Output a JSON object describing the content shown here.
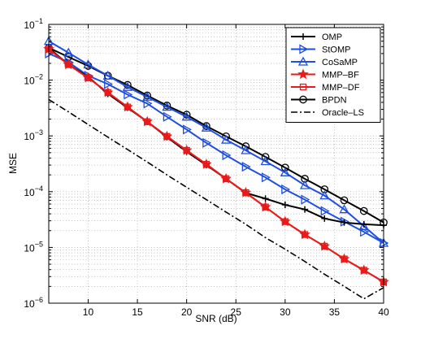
{
  "chart_data": {
    "type": "line",
    "title": "",
    "xlabel": "SNR (dB)",
    "ylabel": "MSE",
    "x_scale": "linear",
    "y_scale": "log",
    "xlim": [
      6,
      40
    ],
    "ylim": [
      1e-06,
      0.1
    ],
    "x_ticks": [
      10,
      15,
      20,
      25,
      30,
      35,
      40
    ],
    "x_tick_labels": [
      "10",
      "15",
      "20",
      "25",
      "30",
      "35",
      "40"
    ],
    "y_ticks": [
      1e-06,
      1e-05,
      0.0001,
      0.001,
      0.01,
      0.1
    ],
    "y_tick_labels": [
      {
        "base": "10",
        "exp": "−6"
      },
      {
        "base": "10",
        "exp": "−5"
      },
      {
        "base": "10",
        "exp": "−4"
      },
      {
        "base": "10",
        "exp": "−3"
      },
      {
        "base": "10",
        "exp": "−2"
      },
      {
        "base": "10",
        "exp": "−1"
      }
    ],
    "grid": true,
    "legend_position": "top-right",
    "x": [
      6,
      8,
      10,
      12,
      14,
      16,
      18,
      20,
      22,
      24,
      26,
      28,
      30,
      32,
      34,
      36,
      38,
      40
    ],
    "series": [
      {
        "name": "OMP",
        "color": "#000000",
        "marker": "plus",
        "dash": "solid",
        "values": [
          0.038,
          0.019,
          0.0115,
          0.0057,
          0.0032,
          0.0018,
          0.00095,
          0.00052,
          0.0003,
          0.00017,
          9.5e-05,
          7.5e-05,
          5.8e-05,
          4.8e-05,
          3.3e-05,
          2.8e-05,
          2.6e-05,
          2.5e-05
        ]
      },
      {
        "name": "StOMP",
        "color": "#1f4fe0",
        "marker": "triangle-right",
        "dash": "solid",
        "values": [
          0.03,
          0.021,
          0.012,
          0.0085,
          0.0055,
          0.0038,
          0.0022,
          0.0013,
          0.00075,
          0.00045,
          0.00028,
          0.00018,
          0.00011,
          7.2e-05,
          4.5e-05,
          2.9e-05,
          1.9e-05,
          1.2e-05
        ]
      },
      {
        "name": "CoSaMP",
        "color": "#1f4fe0",
        "marker": "triangle-up",
        "dash": "solid",
        "values": [
          0.05,
          0.031,
          0.019,
          0.012,
          0.0075,
          0.005,
          0.0033,
          0.0022,
          0.0014,
          0.00085,
          0.00055,
          0.00035,
          0.00022,
          0.00013,
          8.5e-05,
          4.8e-05,
          2.4e-05,
          1.2e-05
        ]
      },
      {
        "name": "MMP–BF",
        "color": "#e81a1a",
        "marker": "star",
        "dash": "solid",
        "values": [
          0.036,
          0.019,
          0.011,
          0.006,
          0.0033,
          0.0018,
          0.00098,
          0.00055,
          0.00031,
          0.00017,
          9.6e-05,
          5.3e-05,
          2.9e-05,
          1.7e-05,
          1.05e-05,
          6.2e-06,
          3.9e-06,
          2.4e-06
        ]
      },
      {
        "name": "MMP–DF",
        "color": "#e81a1a",
        "marker": "square",
        "dash": "solid",
        "values": [
          0.036,
          0.019,
          0.011,
          0.006,
          0.0033,
          0.0018,
          0.00098,
          0.00055,
          0.00031,
          0.00017,
          9.6e-05,
          5.3e-05,
          2.9e-05,
          1.7e-05,
          1.05e-05,
          6.2e-06,
          3.9e-06,
          2.4e-06
        ]
      },
      {
        "name": "BPDN",
        "color": "#000000",
        "marker": "circle",
        "dash": "solid",
        "values": [
          0.038,
          0.026,
          0.018,
          0.012,
          0.0082,
          0.0053,
          0.0035,
          0.0024,
          0.0015,
          0.00098,
          0.00065,
          0.00042,
          0.00027,
          0.00017,
          0.00011,
          7e-05,
          4.5e-05,
          2.8e-05
        ]
      },
      {
        "name": "Oracle–LS",
        "color": "#000000",
        "marker": "none",
        "dash": "dash-dot",
        "values": [
          0.0045,
          0.0027,
          0.0016,
          0.00095,
          0.00057,
          0.00034,
          0.0002,
          0.00012,
          7.2e-05,
          4.3e-05,
          2.6e-05,
          1.5e-05,
          9.3e-06,
          5.6e-06,
          3.3e-06,
          2e-06,
          1.2e-06,
          1.9e-06
        ]
      }
    ]
  }
}
